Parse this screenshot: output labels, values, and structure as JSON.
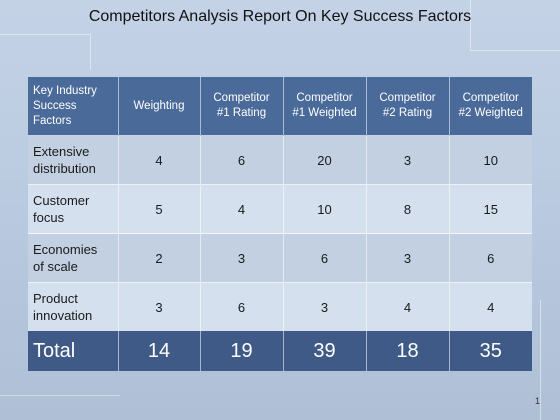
{
  "title": "Competitors Analysis Report On Key Success Factors",
  "table": {
    "headers": [
      [
        "Key Industry",
        "Success",
        "Factors"
      ],
      [
        "Weighting"
      ],
      [
        "Competitor",
        "#1 Rating"
      ],
      [
        "Competitor",
        "#1 Weighted"
      ],
      [
        "Competitor",
        "#2 Rating"
      ],
      [
        "Competitor",
        "#2 Weighted"
      ]
    ],
    "rows": [
      {
        "factor": [
          "Extensive",
          "distribution"
        ],
        "weighting": "4",
        "c1_rating": "6",
        "c1_weighted": "20",
        "c2_rating": "3",
        "c2_weighted": "10"
      },
      {
        "factor": [
          "Customer",
          "focus"
        ],
        "weighting": "5",
        "c1_rating": "4",
        "c1_weighted": "10",
        "c2_rating": "8",
        "c2_weighted": "15"
      },
      {
        "factor": [
          "Economies",
          "of scale"
        ],
        "weighting": "2",
        "c1_rating": "3",
        "c1_weighted": "6",
        "c2_rating": "3",
        "c2_weighted": "6"
      },
      {
        "factor": [
          "Product",
          "innovation"
        ],
        "weighting": "3",
        "c1_rating": "6",
        "c1_weighted": "3",
        "c2_rating": "4",
        "c2_weighted": "4"
      }
    ],
    "total": {
      "label": "Total",
      "weighting": "14",
      "c1_rating": "19",
      "c1_weighted": "39",
      "c2_rating": "18",
      "c2_weighted": "35"
    }
  },
  "page_number": "1",
  "colors": {
    "header_bg": "#4a6a99",
    "total_bg": "#3f5a86",
    "row_odd": "#c2d0e2",
    "row_even": "#d5e0ee",
    "background": "#c4d2e6"
  }
}
